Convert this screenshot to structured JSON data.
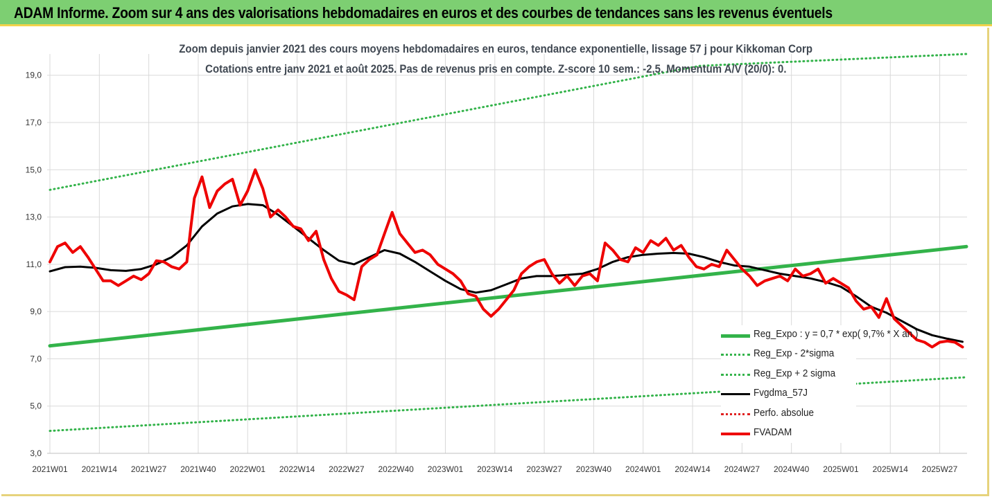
{
  "banner": {
    "title": "ADAM Informe. Zoom sur 4 ans des valorisations hebdomadaires en euros et des courbes de tendances sans les revenus éventuels"
  },
  "chart_data": {
    "type": "line",
    "title_line1": "Zoom depuis janvier 2021 des cours moyens hebdomadaires en euros, tendance exponentielle, lissage 57 j pour Kikkoman Corp",
    "title_line2": "Cotations entre janv 2021 et août 2025.  Pas de revenus pris en compte.  Z-score 10 sem.: -2,5. Momentum A/V (20/0): 0.",
    "ylim": [
      3,
      19.9
    ],
    "y_ticks": [
      "3,0",
      "5,0",
      "7,0",
      "9,0",
      "11,0",
      "13,0",
      "15,0",
      "17,0",
      "19,0"
    ],
    "y_tick_values": [
      3,
      5,
      7,
      9,
      11,
      13,
      15,
      17,
      19
    ],
    "x_range": [
      0,
      241
    ],
    "x_ticks": [
      "2021W01",
      "2021W14",
      "2021W27",
      "2021W40",
      "2022W01",
      "2022W14",
      "2022W27",
      "2022W40",
      "2023W01",
      "2023W14",
      "2023W27",
      "2023W40",
      "2024W01",
      "2024W14",
      "2024W27",
      "2024W40",
      "2025W01",
      "2025W14",
      "2025W27"
    ],
    "x_tick_index": [
      0,
      13,
      26,
      39,
      52,
      65,
      78,
      91,
      104,
      117,
      130,
      143,
      156,
      169,
      182,
      195,
      208,
      221,
      234
    ],
    "grid": true,
    "legend_position": "bottom-right",
    "series": [
      {
        "name": "Reg_Expo : y = 0,7 * exp( 9,7% *  X an )",
        "style": "solid-thick",
        "color": "#33b34a",
        "points": [
          [
            0,
            7.55
          ],
          [
            241,
            11.75
          ]
        ]
      },
      {
        "name": "Reg_Exp - 2*sigma",
        "style": "dotted",
        "color": "#33b34a",
        "points": [
          [
            0,
            3.95
          ],
          [
            241,
            6.22
          ]
        ]
      },
      {
        "name": "Reg_Exp + 2 sigma",
        "style": "dotted",
        "color": "#33b34a",
        "points": [
          [
            0,
            14.15
          ],
          [
            161,
            19.1
          ],
          [
            171,
            19.4
          ],
          [
            241,
            19.9
          ]
        ]
      },
      {
        "name": "Fvgdma_57J",
        "style": "solid",
        "color": "#000000",
        "points": [
          [
            0,
            10.7
          ],
          [
            4,
            10.88
          ],
          [
            8,
            10.9
          ],
          [
            12,
            10.85
          ],
          [
            16,
            10.75
          ],
          [
            20,
            10.72
          ],
          [
            24,
            10.8
          ],
          [
            28,
            11.0
          ],
          [
            32,
            11.3
          ],
          [
            36,
            11.8
          ],
          [
            40,
            12.6
          ],
          [
            44,
            13.15
          ],
          [
            48,
            13.45
          ],
          [
            52,
            13.55
          ],
          [
            56,
            13.5
          ],
          [
            60,
            13.1
          ],
          [
            64,
            12.6
          ],
          [
            68,
            12.1
          ],
          [
            72,
            11.6
          ],
          [
            76,
            11.15
          ],
          [
            80,
            11.0
          ],
          [
            84,
            11.3
          ],
          [
            88,
            11.6
          ],
          [
            92,
            11.45
          ],
          [
            96,
            11.1
          ],
          [
            100,
            10.7
          ],
          [
            104,
            10.3
          ],
          [
            108,
            9.95
          ],
          [
            112,
            9.8
          ],
          [
            116,
            9.9
          ],
          [
            120,
            10.15
          ],
          [
            124,
            10.4
          ],
          [
            128,
            10.5
          ],
          [
            132,
            10.5
          ],
          [
            136,
            10.55
          ],
          [
            140,
            10.6
          ],
          [
            144,
            10.8
          ],
          [
            148,
            11.1
          ],
          [
            152,
            11.3
          ],
          [
            156,
            11.4
          ],
          [
            160,
            11.45
          ],
          [
            164,
            11.48
          ],
          [
            168,
            11.45
          ],
          [
            172,
            11.3
          ],
          [
            176,
            11.1
          ],
          [
            180,
            10.95
          ],
          [
            184,
            10.9
          ],
          [
            188,
            10.75
          ],
          [
            192,
            10.6
          ],
          [
            196,
            10.5
          ],
          [
            200,
            10.4
          ],
          [
            204,
            10.25
          ],
          [
            208,
            10.05
          ],
          [
            212,
            9.65
          ],
          [
            216,
            9.2
          ],
          [
            220,
            8.95
          ],
          [
            224,
            8.6
          ],
          [
            228,
            8.25
          ],
          [
            232,
            8.0
          ],
          [
            236,
            7.85
          ],
          [
            240,
            7.72
          ]
        ]
      },
      {
        "name": "Perfo. absolue",
        "style": "dotted",
        "color": "#e02020",
        "points": []
      },
      {
        "name": "FVADAM",
        "style": "solid-thick",
        "color": "#ee0000",
        "points": [
          [
            0,
            11.1
          ],
          [
            2,
            11.75
          ],
          [
            4,
            11.9
          ],
          [
            6,
            11.5
          ],
          [
            8,
            11.75
          ],
          [
            10,
            11.3
          ],
          [
            12,
            10.8
          ],
          [
            14,
            10.3
          ],
          [
            16,
            10.3
          ],
          [
            18,
            10.1
          ],
          [
            20,
            10.3
          ],
          [
            22,
            10.5
          ],
          [
            24,
            10.35
          ],
          [
            26,
            10.6
          ],
          [
            28,
            11.15
          ],
          [
            30,
            11.1
          ],
          [
            32,
            10.9
          ],
          [
            34,
            10.8
          ],
          [
            36,
            11.1
          ],
          [
            37,
            12.5
          ],
          [
            38,
            13.8
          ],
          [
            40,
            14.7
          ],
          [
            42,
            13.4
          ],
          [
            44,
            14.1
          ],
          [
            46,
            14.4
          ],
          [
            48,
            14.6
          ],
          [
            50,
            13.5
          ],
          [
            52,
            14.1
          ],
          [
            54,
            15.0
          ],
          [
            56,
            14.2
          ],
          [
            58,
            13.0
          ],
          [
            60,
            13.3
          ],
          [
            62,
            13.0
          ],
          [
            64,
            12.6
          ],
          [
            66,
            12.5
          ],
          [
            68,
            12.0
          ],
          [
            70,
            12.4
          ],
          [
            72,
            11.2
          ],
          [
            74,
            10.4
          ],
          [
            76,
            9.85
          ],
          [
            78,
            9.7
          ],
          [
            80,
            9.5
          ],
          [
            82,
            10.9
          ],
          [
            84,
            11.2
          ],
          [
            86,
            11.4
          ],
          [
            88,
            12.3
          ],
          [
            90,
            13.2
          ],
          [
            92,
            12.3
          ],
          [
            94,
            11.9
          ],
          [
            96,
            11.5
          ],
          [
            98,
            11.6
          ],
          [
            100,
            11.4
          ],
          [
            102,
            11.0
          ],
          [
            104,
            10.8
          ],
          [
            106,
            10.6
          ],
          [
            108,
            10.3
          ],
          [
            110,
            9.75
          ],
          [
            112,
            9.65
          ],
          [
            114,
            9.1
          ],
          [
            116,
            8.8
          ],
          [
            118,
            9.1
          ],
          [
            120,
            9.5
          ],
          [
            122,
            9.9
          ],
          [
            124,
            10.6
          ],
          [
            126,
            10.9
          ],
          [
            128,
            11.1
          ],
          [
            130,
            11.2
          ],
          [
            132,
            10.6
          ],
          [
            134,
            10.2
          ],
          [
            136,
            10.5
          ],
          [
            138,
            10.1
          ],
          [
            140,
            10.5
          ],
          [
            142,
            10.6
          ],
          [
            144,
            10.3
          ],
          [
            146,
            11.9
          ],
          [
            148,
            11.6
          ],
          [
            150,
            11.2
          ],
          [
            152,
            11.1
          ],
          [
            154,
            11.7
          ],
          [
            156,
            11.5
          ],
          [
            158,
            12.0
          ],
          [
            160,
            11.8
          ],
          [
            162,
            12.1
          ],
          [
            164,
            11.6
          ],
          [
            166,
            11.8
          ],
          [
            168,
            11.3
          ],
          [
            170,
            10.9
          ],
          [
            172,
            10.8
          ],
          [
            174,
            11.0
          ],
          [
            176,
            10.9
          ],
          [
            178,
            11.6
          ],
          [
            180,
            11.2
          ],
          [
            182,
            10.8
          ],
          [
            184,
            10.5
          ],
          [
            186,
            10.1
          ],
          [
            188,
            10.3
          ],
          [
            190,
            10.4
          ],
          [
            192,
            10.5
          ],
          [
            194,
            10.3
          ],
          [
            196,
            10.8
          ],
          [
            198,
            10.5
          ],
          [
            200,
            10.6
          ],
          [
            202,
            10.8
          ],
          [
            204,
            10.2
          ],
          [
            206,
            10.4
          ],
          [
            208,
            10.2
          ],
          [
            210,
            10.0
          ],
          [
            212,
            9.45
          ],
          [
            214,
            9.1
          ],
          [
            216,
            9.2
          ],
          [
            218,
            8.75
          ],
          [
            220,
            9.55
          ],
          [
            222,
            8.7
          ],
          [
            224,
            8.4
          ],
          [
            226,
            8.1
          ],
          [
            228,
            7.8
          ],
          [
            230,
            7.7
          ],
          [
            232,
            7.5
          ],
          [
            234,
            7.7
          ],
          [
            236,
            7.75
          ],
          [
            238,
            7.7
          ],
          [
            240,
            7.5
          ]
        ]
      }
    ]
  }
}
